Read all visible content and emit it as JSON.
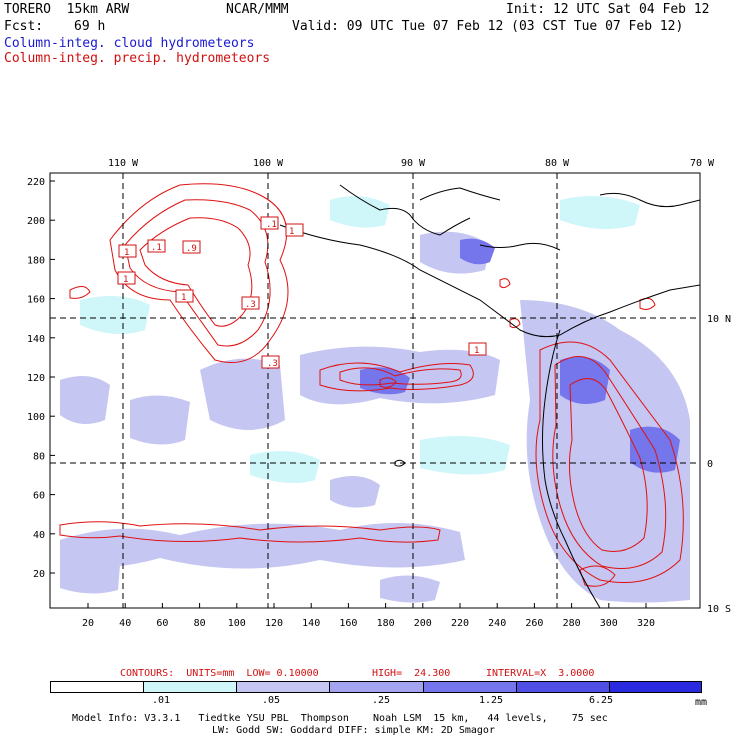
{
  "header": {
    "model": "TORERO  15km ARW",
    "org": "NCAR/MMM",
    "init": "Init: 12 UTC Sat 04 Feb 12",
    "fcst_label": "Fcst:",
    "fcst_value": "69 h",
    "valid": "Valid: 09 UTC Tue 07 Feb 12 (03 CST Tue 07 Feb 12)",
    "legend_cloud": "Column-integ. cloud hydrometeors",
    "legend_precip": "Column-integ. precip. hydrometeors"
  },
  "map": {
    "top_lon_labels": [
      "110 W",
      "100 W",
      "90 W",
      "80 W",
      "70 W"
    ],
    "right_lat_labels": [
      "10 N",
      "0",
      "10 S"
    ],
    "y_ticks": [
      "220",
      "200",
      "180",
      "160",
      "140",
      "120",
      "100",
      "80",
      "60",
      "40",
      "20"
    ],
    "x_ticks": [
      "20",
      "40",
      "60",
      "80",
      "100",
      "120",
      "140",
      "160",
      "180",
      "200",
      "220",
      "240",
      "260",
      "280",
      "300",
      "320"
    ],
    "contour_labels": [
      "1",
      "1",
      ".1",
      "1",
      ".9",
      ".3",
      ".1",
      "1",
      ".3",
      "1",
      "1"
    ]
  },
  "contours_caption": {
    "units": "CONTOURS:  UNITS=mm  LOW= 0.10000",
    "high": "HIGH=  24.300",
    "interval": "INTERVAL=X  3.0000"
  },
  "colorbar": {
    "colors": [
      "#ffffff",
      "#cff6f8",
      "#c6c6f2",
      "#a3a3ef",
      "#7575ec",
      "#4f4fe6",
      "#2a2ade"
    ],
    "labels": [
      ".01",
      ".05",
      ".25",
      "1.25",
      "6.25"
    ],
    "unit": "mm"
  },
  "footer": {
    "line1": "Model Info: V3.3.1   Tiedtke YSU PBL  Thompson    Noah LSM  15 km,   44 levels,    75 sec",
    "line2": "LW: Godd SW: Goddard DIFF: simple KM: 2D Smagor"
  }
}
